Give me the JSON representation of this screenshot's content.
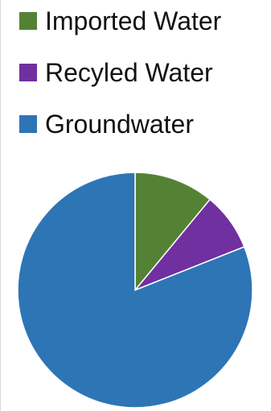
{
  "chart_data": {
    "type": "pie",
    "title": "",
    "legend_position": "top-left",
    "slices": [
      {
        "label": "Imported Water",
        "value": 11,
        "color": "#548235"
      },
      {
        "label": "Recyled Water",
        "value": 8,
        "color": "#7030a0"
      },
      {
        "label": "Groundwater",
        "value": 81,
        "color": "#2e75b6"
      }
    ]
  }
}
